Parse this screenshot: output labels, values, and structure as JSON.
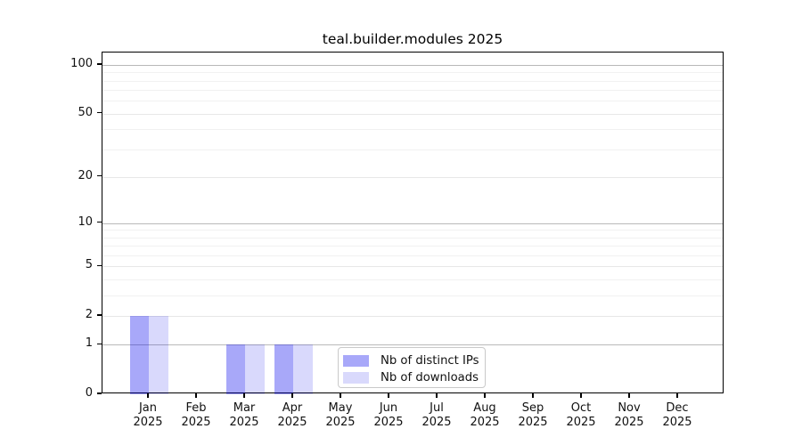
{
  "chart_data": {
    "type": "bar",
    "title": "teal.builder.modules 2025",
    "categories": [
      "Jan 2025",
      "Feb 2025",
      "Mar 2025",
      "Apr 2025",
      "May 2025",
      "Jun 2025",
      "Jul 2025",
      "Aug 2025",
      "Sep 2025",
      "Oct 2025",
      "Nov 2025",
      "Dec 2025"
    ],
    "series": [
      {
        "name": "Nb of distinct IPs",
        "color": "rgba(0,0,238,0.34)",
        "color_hex": "#a9a9f5",
        "values": [
          2,
          0,
          1,
          1,
          0,
          0,
          0,
          0,
          0,
          0,
          0,
          0
        ]
      },
      {
        "name": "Nb of downloads",
        "color": "rgba(0,0,238,0.15)",
        "color_hex": "#d9d9f8",
        "values": [
          2,
          0,
          1,
          1,
          0,
          0,
          0,
          0,
          0,
          0,
          0,
          0
        ]
      }
    ],
    "y_axis": {
      "scale": "log1p",
      "ticks": [
        0,
        1,
        2,
        5,
        10,
        20,
        50,
        100
      ],
      "ylim": [
        0,
        119
      ]
    },
    "x_axis": {
      "tick_label_lines": 2
    },
    "grid": {
      "major": [
        1,
        10,
        100
      ],
      "mid": [
        2,
        5,
        20,
        50
      ],
      "minor": [
        3,
        4,
        6,
        7,
        8,
        9,
        30,
        40,
        60,
        70,
        80,
        90
      ],
      "orientation": "horizontal"
    },
    "legend": {
      "position": "inside lower center",
      "items": [
        "Nb of distinct IPs",
        "Nb of downloads"
      ]
    },
    "colors": {
      "spine": "#000000",
      "major_grid": "#b9b9b9",
      "mid_grid": "#e7e7e7",
      "minor_grid": "#f1f1f1",
      "background": "#ffffff"
    }
  }
}
